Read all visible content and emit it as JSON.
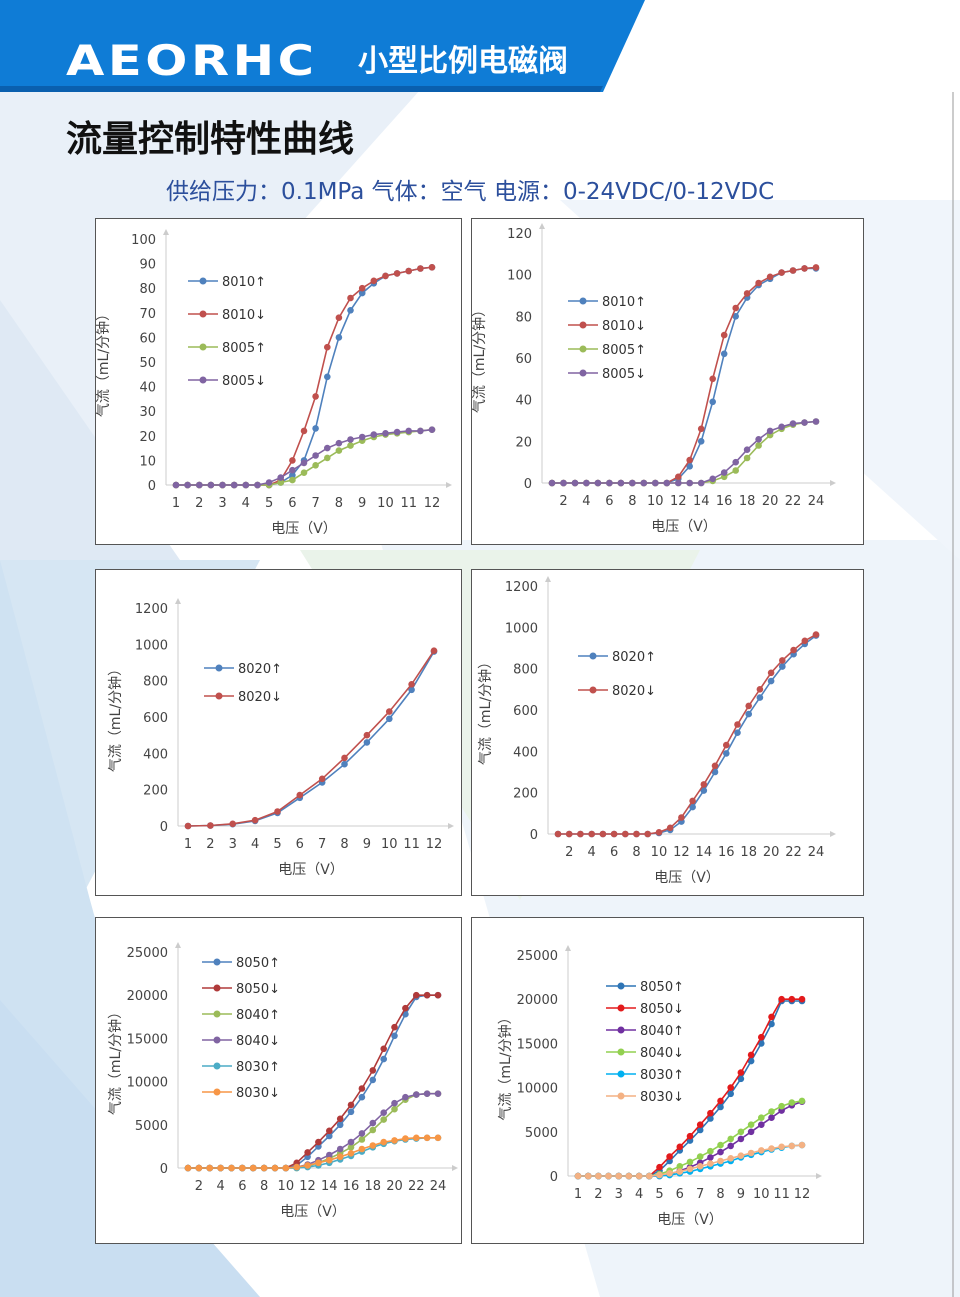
{
  "header": {
    "brand": "AEORHC",
    "subtitle": "小型比例电磁阀"
  },
  "page_title": "流量控制特性曲线",
  "supply_info": "供给压力：0.1MPa 气体：空气 电源：0-24VDC/0-12VDC",
  "colors": {
    "banner": "#0f7cd6",
    "series_blue": "#4f81bd",
    "series_red": "#c0504d",
    "series_green": "#9bbb59",
    "series_purple": "#8064a2",
    "series_cyan": "#4bacc6",
    "series_orange": "#f79646"
  },
  "chart_data": [
    {
      "type": "line",
      "xlabel": "电压（V）",
      "ylabel": "气流（mL/分钟）",
      "x": [
        1,
        1.5,
        2,
        2.5,
        3,
        3.5,
        4,
        4.5,
        5,
        5.5,
        6,
        6.5,
        7,
        7.5,
        8,
        8.5,
        9,
        9.5,
        10,
        10.5,
        11,
        11.5,
        12
      ],
      "xticks": [
        "1",
        "2",
        "3",
        "4",
        "5",
        "6",
        "7",
        "8",
        "9",
        "10",
        "11",
        "12"
      ],
      "ylim": [
        0,
        100
      ],
      "yticks": [
        "0",
        "10",
        "20",
        "30",
        "40",
        "50",
        "60",
        "70",
        "80",
        "90",
        "100"
      ],
      "legend": "top-left",
      "series": [
        {
          "name": "8010↑",
          "color": "#4f81bd",
          "values": [
            0,
            0,
            0,
            0,
            0,
            0,
            0,
            0,
            0,
            1,
            4,
            10,
            23,
            44,
            60,
            71,
            78,
            82,
            85,
            86,
            87,
            88,
            88.5
          ]
        },
        {
          "name": "8010↓",
          "color": "#c0504d",
          "values": [
            0,
            0,
            0,
            0,
            0,
            0,
            0,
            0,
            0,
            2,
            10,
            22,
            36,
            56,
            68,
            76,
            80,
            83,
            85,
            86,
            87,
            88,
            88.5
          ]
        },
        {
          "name": "8005↑",
          "color": "#9bbb59",
          "values": [
            0,
            0,
            0,
            0,
            0,
            0,
            0,
            0,
            0,
            1,
            2,
            5,
            8,
            11,
            14,
            16,
            18,
            19.5,
            20.5,
            21,
            21.5,
            22,
            22.5
          ]
        },
        {
          "name": "8005↓",
          "color": "#8064a2",
          "values": [
            0,
            0,
            0,
            0,
            0,
            0,
            0,
            0,
            1,
            3,
            6,
            9,
            12,
            15,
            17,
            18.5,
            19.5,
            20.5,
            21,
            21.5,
            22,
            22,
            22.5
          ]
        }
      ]
    },
    {
      "type": "line",
      "xlabel": "电压（V）",
      "ylabel": "气流（mL/分钟）",
      "x": [
        1,
        2,
        3,
        4,
        5,
        6,
        7,
        8,
        9,
        10,
        11,
        12,
        13,
        14,
        15,
        16,
        17,
        18,
        19,
        20,
        21,
        22,
        23,
        24
      ],
      "xticks": [
        "2",
        "4",
        "6",
        "8",
        "10",
        "12",
        "14",
        "16",
        "18",
        "20",
        "22",
        "24"
      ],
      "ylim": [
        0,
        120
      ],
      "yticks": [
        "0",
        "20",
        "40",
        "60",
        "80",
        "100",
        "120"
      ],
      "legend": "top-left",
      "series": [
        {
          "name": "8010↑",
          "color": "#4f81bd",
          "values": [
            0,
            0,
            0,
            0,
            0,
            0,
            0,
            0,
            0,
            0,
            0,
            2,
            8,
            20,
            39,
            62,
            80,
            89,
            95,
            98,
            101,
            102,
            103,
            103
          ]
        },
        {
          "name": "8010↓",
          "color": "#c0504d",
          "values": [
            0,
            0,
            0,
            0,
            0,
            0,
            0,
            0,
            0,
            0,
            0,
            3,
            11,
            26,
            50,
            71,
            84,
            91,
            96,
            99,
            101,
            102,
            103,
            103.5
          ]
        },
        {
          "name": "8005↑",
          "color": "#9bbb59",
          "values": [
            0,
            0,
            0,
            0,
            0,
            0,
            0,
            0,
            0,
            0,
            0,
            0,
            0,
            0,
            1,
            3,
            6,
            12,
            18,
            23,
            26,
            28,
            29,
            29.5
          ]
        },
        {
          "name": "8005↓",
          "color": "#8064a2",
          "values": [
            0,
            0,
            0,
            0,
            0,
            0,
            0,
            0,
            0,
            0,
            0,
            0,
            0,
            0,
            2,
            5,
            10,
            16,
            21,
            25,
            27,
            28.5,
            29,
            29.5
          ]
        }
      ]
    },
    {
      "type": "line",
      "xlabel": "电压（V）",
      "ylabel": "气流（mL/分钟）",
      "x": [
        1,
        2,
        3,
        4,
        5,
        6,
        7,
        8,
        9,
        10,
        11,
        12
      ],
      "xticks": [
        "1",
        "2",
        "3",
        "4",
        "5",
        "6",
        "7",
        "8",
        "9",
        "10",
        "11",
        "12"
      ],
      "ylim": [
        0,
        1200
      ],
      "yticks": [
        "0",
        "200",
        "400",
        "600",
        "800",
        "1000",
        "1200"
      ],
      "legend": "top-left",
      "series": [
        {
          "name": "8020↑",
          "color": "#4f81bd",
          "values": [
            0,
            2,
            10,
            28,
            72,
            155,
            240,
            340,
            460,
            590,
            750,
            960
          ]
        },
        {
          "name": "8020↓",
          "color": "#c0504d",
          "values": [
            0,
            3,
            12,
            32,
            80,
            170,
            260,
            375,
            500,
            630,
            780,
            965
          ]
        }
      ]
    },
    {
      "type": "line",
      "xlabel": "电压（V）",
      "ylabel": "气流（mL/分钟）",
      "x": [
        1,
        2,
        3,
        4,
        5,
        6,
        7,
        8,
        9,
        10,
        11,
        12,
        13,
        14,
        15,
        16,
        17,
        18,
        19,
        20,
        21,
        22,
        23,
        24
      ],
      "xticks": [
        "2",
        "4",
        "6",
        "8",
        "10",
        "12",
        "14",
        "16",
        "18",
        "20",
        "22",
        "24"
      ],
      "ylim": [
        0,
        1200
      ],
      "yticks": [
        "0",
        "200",
        "400",
        "600",
        "800",
        "1000",
        "1200"
      ],
      "legend": "top-left",
      "series": [
        {
          "name": "8020↑",
          "color": "#4f81bd",
          "values": [
            0,
            0,
            0,
            0,
            0,
            0,
            0,
            0,
            0,
            5,
            20,
            60,
            130,
            210,
            300,
            390,
            490,
            580,
            660,
            740,
            810,
            870,
            920,
            960
          ]
        },
        {
          "name": "8020↓",
          "color": "#c0504d",
          "values": [
            0,
            0,
            0,
            0,
            0,
            0,
            0,
            0,
            0,
            8,
            30,
            80,
            160,
            240,
            330,
            430,
            530,
            620,
            700,
            780,
            840,
            890,
            935,
            965
          ]
        }
      ]
    },
    {
      "type": "line",
      "xlabel": "电压（V）",
      "ylabel": "气流（mL/分钟）",
      "x": [
        1,
        2,
        3,
        4,
        5,
        6,
        7,
        8,
        9,
        10,
        11,
        12,
        13,
        14,
        15,
        16,
        17,
        18,
        19,
        20,
        21,
        22,
        23,
        24
      ],
      "xticks": [
        "2",
        "4",
        "6",
        "8",
        "10",
        "12",
        "14",
        "16",
        "18",
        "20",
        "22",
        "24"
      ],
      "ylim": [
        0,
        25000
      ],
      "yticks": [
        "0",
        "5000",
        "10000",
        "15000",
        "20000",
        "25000"
      ],
      "legend": "top-left",
      "series": [
        {
          "name": "8050↑",
          "color": "#4f81bd",
          "values": [
            0,
            0,
            0,
            0,
            0,
            0,
            0,
            0,
            0,
            0,
            300,
            1300,
            2500,
            3700,
            5000,
            6500,
            8200,
            10200,
            12600,
            15300,
            17800,
            19800,
            20000,
            20000
          ]
        },
        {
          "name": "8050↓",
          "color": "#b03a3a",
          "values": [
            0,
            0,
            0,
            0,
            0,
            0,
            0,
            0,
            0,
            0,
            600,
            1800,
            3000,
            4300,
            5700,
            7300,
            9200,
            11300,
            13800,
            16300,
            18500,
            20000,
            20000,
            20000
          ]
        },
        {
          "name": "8040↑",
          "color": "#9bbb59",
          "values": [
            0,
            0,
            0,
            0,
            0,
            0,
            0,
            0,
            0,
            0,
            0,
            200,
            600,
            1100,
            1700,
            2400,
            3300,
            4400,
            5600,
            6800,
            7900,
            8500,
            8600,
            8600
          ]
        },
        {
          "name": "8040↓",
          "color": "#8064a2",
          "values": [
            0,
            0,
            0,
            0,
            0,
            0,
            0,
            0,
            0,
            0,
            100,
            400,
            900,
            1500,
            2200,
            3000,
            4000,
            5200,
            6400,
            7500,
            8200,
            8500,
            8600,
            8600
          ]
        },
        {
          "name": "8030↑",
          "color": "#4bacc6",
          "values": [
            0,
            0,
            0,
            0,
            0,
            0,
            0,
            0,
            0,
            0,
            0,
            100,
            300,
            600,
            1000,
            1400,
            1900,
            2400,
            2800,
            3100,
            3300,
            3400,
            3500,
            3500
          ]
        },
        {
          "name": "8030↓",
          "color": "#f79646",
          "values": [
            0,
            0,
            0,
            0,
            0,
            0,
            0,
            0,
            0,
            0,
            100,
            300,
            600,
            900,
            1300,
            1700,
            2200,
            2600,
            3000,
            3200,
            3400,
            3500,
            3500,
            3500
          ]
        }
      ]
    },
    {
      "type": "line",
      "xlabel": "电压（V）",
      "ylabel": "气流（mL/分钟）",
      "x": [
        1,
        1.5,
        2,
        2.5,
        3,
        3.5,
        4,
        4.5,
        5,
        5.5,
        6,
        6.5,
        7,
        7.5,
        8,
        8.5,
        9,
        9.5,
        10,
        10.5,
        11,
        11.5,
        12
      ],
      "xticks": [
        "1",
        "2",
        "3",
        "4",
        "5",
        "6",
        "7",
        "8",
        "9",
        "10",
        "11",
        "12"
      ],
      "ylim": [
        0,
        25000
      ],
      "yticks": [
        "0",
        "5000",
        "10000",
        "15000",
        "20000",
        "25000"
      ],
      "legend": "top-left",
      "series": [
        {
          "name": "8050↑",
          "color": "#2e75b6",
          "values": [
            0,
            0,
            0,
            0,
            0,
            0,
            0,
            0,
            600,
            1700,
            2900,
            4000,
            5200,
            6500,
            7800,
            9300,
            11000,
            13000,
            15000,
            17200,
            19800,
            19800,
            19800
          ]
        },
        {
          "name": "8050↓",
          "color": "#e31a1c",
          "values": [
            0,
            0,
            0,
            0,
            0,
            0,
            0,
            0,
            1000,
            2200,
            3300,
            4500,
            5800,
            7100,
            8500,
            10000,
            11700,
            13700,
            15700,
            18000,
            20000,
            20000,
            20000
          ]
        },
        {
          "name": "8040↑",
          "color": "#7030a0",
          "values": [
            0,
            0,
            0,
            0,
            0,
            0,
            0,
            0,
            0,
            200,
            600,
            1000,
            1500,
            2100,
            2700,
            3400,
            4200,
            5000,
            5800,
            6600,
            7400,
            8000,
            8400
          ]
        },
        {
          "name": "8040↓",
          "color": "#92d050",
          "values": [
            0,
            0,
            0,
            0,
            0,
            0,
            0,
            0,
            200,
            600,
            1100,
            1600,
            2200,
            2800,
            3500,
            4200,
            5000,
            5800,
            6600,
            7300,
            7900,
            8300,
            8500
          ]
        },
        {
          "name": "8030↑",
          "color": "#00b0f0",
          "values": [
            0,
            0,
            0,
            0,
            0,
            0,
            0,
            0,
            0,
            100,
            300,
            500,
            800,
            1100,
            1400,
            1700,
            2100,
            2400,
            2700,
            3000,
            3200,
            3400,
            3500
          ]
        },
        {
          "name": "8030↓",
          "color": "#f4b183",
          "values": [
            0,
            0,
            0,
            0,
            0,
            0,
            0,
            0,
            100,
            300,
            500,
            800,
            1100,
            1400,
            1700,
            2000,
            2300,
            2600,
            2900,
            3100,
            3300,
            3400,
            3500
          ]
        }
      ]
    }
  ]
}
